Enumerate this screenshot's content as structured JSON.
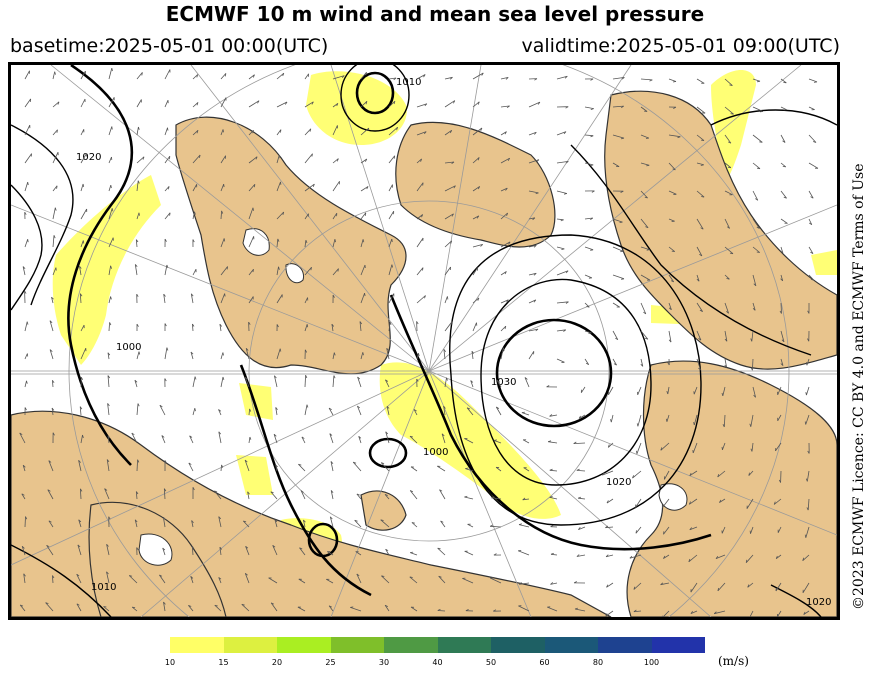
{
  "title": "ECMWF 10 m wind and mean sea level pressure",
  "basetime": "basetime:2025-05-01 00:00(UTC)",
  "validtime": "validtime:2025-05-01 09:00(UTC)",
  "credit": "©2023 ECMWF Licence: CC BY 4.0 and ECMWF Terms of Use",
  "colors": {
    "land": "#e8c48d",
    "ocean": "#ffffff",
    "isobar": "#000000",
    "graticule": "#9a9a9a"
  },
  "colorbar": {
    "units": "(m/s)",
    "ticks": [
      "10",
      "15",
      "20",
      "25",
      "30",
      "40",
      "50",
      "60",
      "80",
      "100"
    ],
    "colors": [
      "#ffff66",
      "#ddf040",
      "#aaee22",
      "#7fbf2a",
      "#4f9a44",
      "#2f7a55",
      "#1e6064",
      "#1b5878",
      "#1e4290",
      "#2233aa"
    ]
  },
  "isobar_labels": [
    "1020",
    "1000",
    "1030",
    "1020",
    "1010",
    "1000",
    "1010",
    "1020"
  ]
}
